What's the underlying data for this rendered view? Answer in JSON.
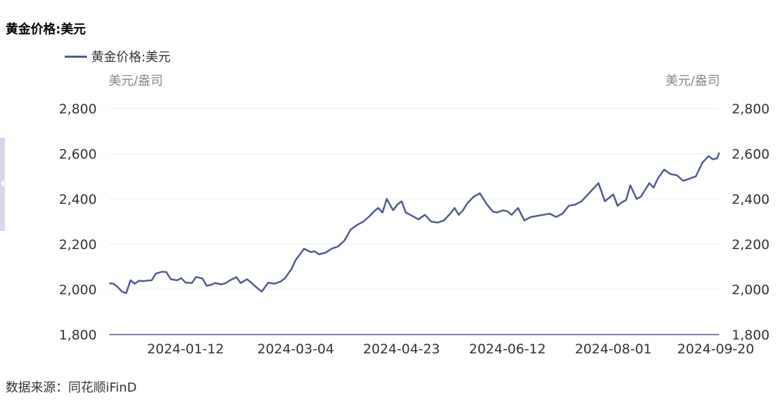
{
  "title": "黄金价格:美元",
  "unit_left": "美元/盎司",
  "unit_right": "美元/盎司",
  "source": "数据来源：同花顺iFinD",
  "colors": {
    "line": "#4e5a8e",
    "grid": "#e9ebf3",
    "axis": "#4e5a8e"
  },
  "chart_data": {
    "type": "line",
    "title": "黄金价格:美元",
    "ylabel": "美元/盎司",
    "ylim": [
      1800,
      2800
    ],
    "yticks": [
      1800,
      2000,
      2200,
      2400,
      2600,
      2800
    ],
    "ytick_labels": [
      "1,800",
      "2,000",
      "2,200",
      "2,400",
      "2,600",
      "2,800"
    ],
    "xticks": [
      "2024-01-12",
      "2024-03-04",
      "2024-04-23",
      "2024-06-12",
      "2024-08-01",
      "2024-09-20"
    ],
    "x_start": "2023-12-07",
    "x_end": "2024-09-20",
    "grid": true,
    "legend": "top-left",
    "series": [
      {
        "name": "黄金价格:美元",
        "x": [
          "2023-12-07",
          "2023-12-09",
          "2023-12-11",
          "2023-12-13",
          "2023-12-15",
          "2023-12-17",
          "2023-12-19",
          "2023-12-21",
          "2023-12-23",
          "2023-12-25",
          "2023-12-27",
          "2023-12-29",
          "2024-01-01",
          "2024-01-03",
          "2024-01-05",
          "2024-01-08",
          "2024-01-10",
          "2024-01-12",
          "2024-01-15",
          "2024-01-17",
          "2024-01-20",
          "2024-01-22",
          "2024-01-24",
          "2024-01-26",
          "2024-01-29",
          "2024-01-31",
          "2024-02-02",
          "2024-02-05",
          "2024-02-07",
          "2024-02-10",
          "2024-02-12",
          "2024-02-15",
          "2024-02-17",
          "2024-02-20",
          "2024-02-23",
          "2024-02-26",
          "2024-02-28",
          "2024-03-02",
          "2024-03-04",
          "2024-03-06",
          "2024-03-08",
          "2024-03-11",
          "2024-03-13",
          "2024-03-15",
          "2024-03-18",
          "2024-03-21",
          "2024-03-24",
          "2024-03-27",
          "2024-03-30",
          "2024-04-02",
          "2024-04-05",
          "2024-04-08",
          "2024-04-10",
          "2024-04-12",
          "2024-04-14",
          "2024-04-16",
          "2024-04-19",
          "2024-04-21",
          "2024-04-23",
          "2024-04-25",
          "2024-04-28",
          "2024-05-01",
          "2024-05-04",
          "2024-05-07",
          "2024-05-10",
          "2024-05-13",
          "2024-05-16",
          "2024-05-18",
          "2024-05-20",
          "2024-05-22",
          "2024-05-24",
          "2024-05-27",
          "2024-05-30",
          "2024-06-02",
          "2024-06-05",
          "2024-06-07",
          "2024-06-10",
          "2024-06-12",
          "2024-06-14",
          "2024-06-17",
          "2024-06-20",
          "2024-06-23",
          "2024-06-26",
          "2024-06-29",
          "2024-07-02",
          "2024-07-05",
          "2024-07-08",
          "2024-07-11",
          "2024-07-14",
          "2024-07-17",
          "2024-07-19",
          "2024-07-22",
          "2024-07-25",
          "2024-07-28",
          "2024-08-01",
          "2024-08-03",
          "2024-08-05",
          "2024-08-07",
          "2024-08-09",
          "2024-08-12",
          "2024-08-14",
          "2024-08-16",
          "2024-08-18",
          "2024-08-20",
          "2024-08-22",
          "2024-08-25",
          "2024-08-28",
          "2024-08-31",
          "2024-09-03",
          "2024-09-06",
          "2024-09-09",
          "2024-09-12",
          "2024-09-15",
          "2024-09-17",
          "2024-09-19",
          "2024-09-20"
        ],
        "values": [
          2027,
          2025,
          2010,
          1990,
          1983,
          2040,
          2025,
          2038,
          2036,
          2039,
          2040,
          2070,
          2078,
          2076,
          2045,
          2040,
          2050,
          2030,
          2028,
          2055,
          2048,
          2015,
          2020,
          2028,
          2022,
          2028,
          2040,
          2054,
          2028,
          2045,
          2030,
          2005,
          1990,
          2030,
          2025,
          2035,
          2050,
          2090,
          2130,
          2155,
          2180,
          2165,
          2168,
          2155,
          2162,
          2180,
          2190,
          2215,
          2265,
          2285,
          2300,
          2325,
          2345,
          2360,
          2340,
          2400,
          2350,
          2375,
          2390,
          2340,
          2325,
          2310,
          2330,
          2300,
          2295,
          2305,
          2335,
          2360,
          2330,
          2350,
          2380,
          2410,
          2425,
          2380,
          2345,
          2340,
          2350,
          2345,
          2330,
          2360,
          2305,
          2320,
          2325,
          2330,
          2335,
          2320,
          2335,
          2370,
          2375,
          2390,
          2410,
          2440,
          2470,
          2390,
          2420,
          2370,
          2385,
          2395,
          2460,
          2400,
          2410,
          2440,
          2470,
          2450,
          2490,
          2530,
          2510,
          2505,
          2480,
          2490,
          2500,
          2560,
          2590,
          2575,
          2580,
          2605
        ]
      }
    ]
  }
}
